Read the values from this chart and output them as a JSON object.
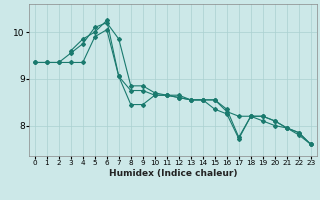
{
  "xlabel": "Humidex (Indice chaleur)",
  "bg_color": "#cce8e8",
  "grid_color": "#aad0d0",
  "line_color": "#1a7a6e",
  "xlim": [
    -0.5,
    23.5
  ],
  "ylim": [
    7.35,
    10.6
  ],
  "yticks": [
    8,
    9,
    10
  ],
  "xticks": [
    0,
    1,
    2,
    3,
    4,
    5,
    6,
    7,
    8,
    9,
    10,
    11,
    12,
    13,
    14,
    15,
    16,
    17,
    18,
    19,
    20,
    21,
    22,
    23
  ],
  "series": [
    {
      "x": [
        0,
        1,
        2,
        3,
        4,
        5,
        6,
        7,
        8,
        9,
        10,
        11,
        12,
        13,
        14,
        15,
        16,
        17,
        18,
        19,
        20,
        21,
        22,
        23
      ],
      "y": [
        9.35,
        9.35,
        9.35,
        9.35,
        9.35,
        9.9,
        10.05,
        9.05,
        8.75,
        8.75,
        8.65,
        8.65,
        8.65,
        8.55,
        8.55,
        8.55,
        8.3,
        8.2,
        8.2,
        8.1,
        8.0,
        7.95,
        7.85,
        7.6
      ]
    },
    {
      "x": [
        0,
        1,
        2,
        3,
        4,
        5,
        6,
        7,
        8,
        9,
        10,
        11,
        12,
        13,
        14,
        15,
        16,
        17,
        18,
        19,
        20,
        21,
        22,
        23
      ],
      "y": [
        9.35,
        9.35,
        9.35,
        9.55,
        9.75,
        10.1,
        10.2,
        9.85,
        8.85,
        8.85,
        8.7,
        8.65,
        8.6,
        8.55,
        8.55,
        8.55,
        8.35,
        7.75,
        8.2,
        8.2,
        8.1,
        7.95,
        7.8,
        7.6
      ]
    },
    {
      "x": [
        3,
        4,
        5,
        6,
        7,
        8,
        9,
        10,
        11,
        12,
        13,
        14,
        15,
        16,
        17,
        18,
        19,
        20,
        21,
        22,
        23
      ],
      "y": [
        9.6,
        9.85,
        10.0,
        10.25,
        9.05,
        8.45,
        8.45,
        8.65,
        8.65,
        8.6,
        8.55,
        8.55,
        8.35,
        8.25,
        7.72,
        8.2,
        8.2,
        8.1,
        7.95,
        7.85,
        7.6
      ]
    }
  ]
}
